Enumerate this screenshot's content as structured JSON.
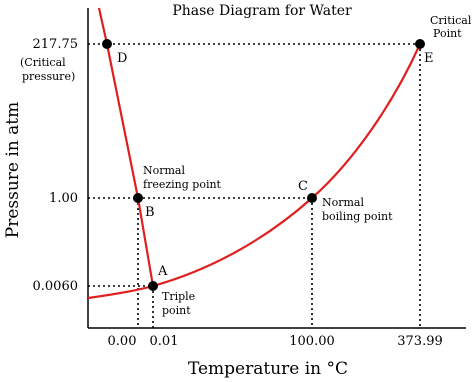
{
  "title": "Phase Diagram for Water",
  "x_axis": {
    "title": "Temperature in °C",
    "ticks": [
      "0.00",
      "0.01",
      "100.00",
      "373.99"
    ]
  },
  "y_axis": {
    "title": "Pressure in atm",
    "ticks": [
      "217.75",
      "1.00",
      "0.0060"
    ],
    "note": [
      "(Critical",
      "pressure)"
    ]
  },
  "points": [
    {
      "label": "A",
      "note": [
        "Triple",
        "point"
      ]
    },
    {
      "label": "B",
      "note": [
        "Normal",
        "freezing point"
      ]
    },
    {
      "label": "C",
      "note": [
        "Normal",
        "boiling point"
      ]
    },
    {
      "label": "D"
    },
    {
      "label": "E",
      "note": [
        "Critical",
        "Point"
      ]
    }
  ]
}
